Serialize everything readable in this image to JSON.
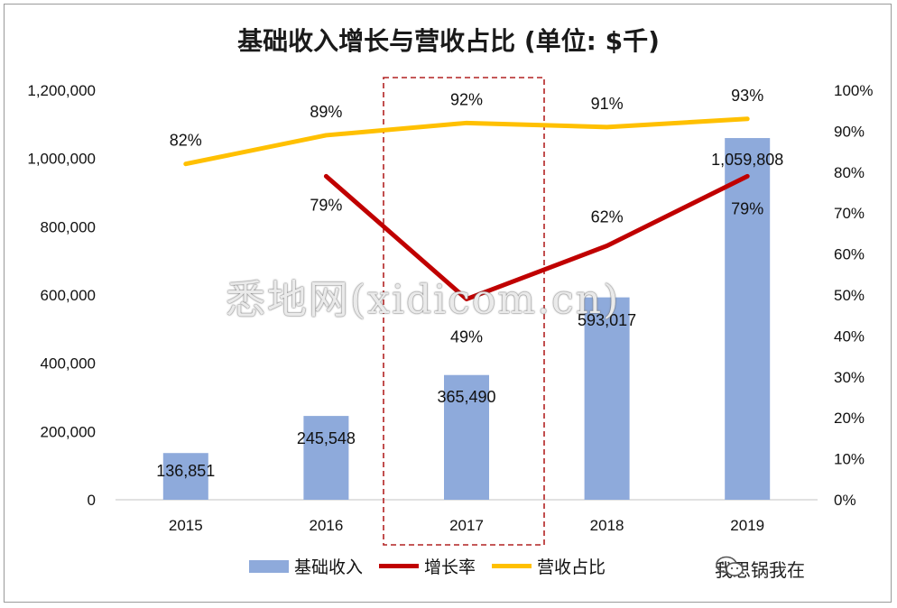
{
  "chart_data": {
    "type": "bar",
    "title": "基础收入增长与营收占比 (单位: $千)",
    "categories": [
      "2015",
      "2016",
      "2017",
      "2018",
      "2019"
    ],
    "y_left": {
      "ylim": [
        0,
        1200000
      ],
      "ticks": [
        "0",
        "200,000",
        "400,000",
        "600,000",
        "800,000",
        "1,000,000",
        "1,200,000"
      ]
    },
    "y_right": {
      "ylim": [
        0,
        100
      ],
      "ticks": [
        "0%",
        "10%",
        "20%",
        "30%",
        "40%",
        "50%",
        "60%",
        "70%",
        "80%",
        "90%",
        "100%"
      ]
    },
    "series": [
      {
        "name": "基础收入",
        "type": "bar",
        "axis": "left",
        "color": "#8eaadb",
        "values": [
          136851,
          245548,
          365490,
          593017,
          1059808
        ],
        "labels": [
          "136,851",
          "245,548",
          "365,490",
          "593,017",
          "1,059,808"
        ]
      },
      {
        "name": "增长率",
        "type": "line",
        "axis": "right",
        "color": "#c00000",
        "values": [
          null,
          79,
          49,
          62,
          79
        ],
        "labels": [
          "",
          "79%",
          "49%",
          "62%",
          "79%"
        ]
      },
      {
        "name": "营收占比",
        "type": "line",
        "axis": "right",
        "color": "#ffc000",
        "values": [
          82,
          89,
          92,
          91,
          93
        ],
        "labels": [
          "82%",
          "89%",
          "92%",
          "91%",
          "93%"
        ]
      }
    ],
    "highlight_category": "2017",
    "grid": false,
    "legend_position": "bottom"
  },
  "watermark": "悉地网(xidicom.cn)",
  "wechat_account": "我思锅我在"
}
